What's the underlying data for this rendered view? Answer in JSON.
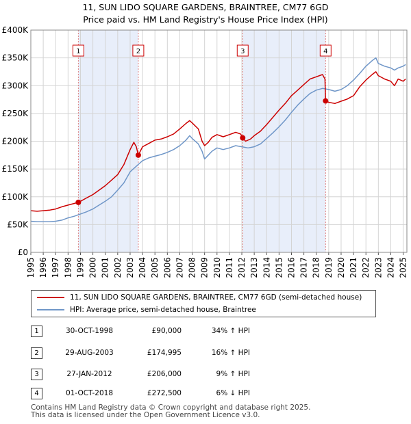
{
  "title": {
    "line1": "11, SUN LIDO SQUARE GARDENS, BRAINTREE, CM77 6GD",
    "line2": "Price paid vs. HM Land Registry's House Price Index (HPI)"
  },
  "colors": {
    "property": "#cc0000",
    "hpi": "#6f96c8",
    "band": "#e8eefa",
    "marker_line": "#e08080"
  },
  "chart_data": {
    "type": "line",
    "title": "Price paid vs. HM Land Registry's House Price Index (HPI)",
    "xlim": [
      1995,
      2025.3
    ],
    "ylim": [
      0,
      400000
    ],
    "x_ticks": [
      1995,
      1996,
      1997,
      1998,
      1999,
      2000,
      2001,
      2002,
      2003,
      2004,
      2005,
      2006,
      2007,
      2008,
      2009,
      2010,
      2011,
      2012,
      2013,
      2014,
      2015,
      2016,
      2017,
      2018,
      2019,
      2020,
      2021,
      2022,
      2023,
      2024,
      2025
    ],
    "y_ticks": [
      {
        "value": 0,
        "label": "£0"
      },
      {
        "value": 50000,
        "label": "£50K"
      },
      {
        "value": 100000,
        "label": "£100K"
      },
      {
        "value": 150000,
        "label": "£150K"
      },
      {
        "value": 200000,
        "label": "£200K"
      },
      {
        "value": 250000,
        "label": "£250K"
      },
      {
        "value": 300000,
        "label": "£300K"
      },
      {
        "value": 350000,
        "label": "£350K"
      },
      {
        "value": 400000,
        "label": "£400K"
      }
    ],
    "grid": true,
    "shaded_bands": [
      [
        1998.83,
        2003.66
      ],
      [
        2012.07,
        2018.75
      ]
    ],
    "series": [
      {
        "name": "11, SUN LIDO SQUARE GARDENS, BRAINTREE, CM77 6GD (semi-detached house)",
        "x": [
          1995,
          1995.5,
          1996,
          1996.5,
          1997,
          1997.5,
          1998,
          1998.5,
          1998.83,
          1999,
          1999.5,
          2000,
          2000.5,
          2001,
          2001.5,
          2002,
          2002.5,
          2003,
          2003.3,
          2003.5,
          2003.66,
          2004,
          2004.5,
          2005,
          2005.5,
          2006,
          2006.5,
          2007,
          2007.5,
          2007.8,
          2008,
          2008.5,
          2008.8,
          2009,
          2009.3,
          2009.6,
          2010,
          2010.5,
          2011,
          2011.5,
          2011.9,
          2012.07,
          2012.3,
          2012.7,
          2013,
          2013.5,
          2014,
          2014.5,
          2015,
          2015.5,
          2016,
          2016.5,
          2017,
          2017.5,
          2018,
          2018.5,
          2018.7,
          2018.75,
          2019,
          2019.5,
          2020,
          2020.5,
          2021,
          2021.5,
          2022,
          2022.5,
          2022.8,
          2023,
          2023.5,
          2024,
          2024.3,
          2024.6,
          2025,
          2025.2
        ],
        "values": [
          75000,
          74000,
          75000,
          76000,
          78000,
          82000,
          85000,
          88000,
          90000,
          92000,
          98000,
          104000,
          112000,
          120000,
          130000,
          140000,
          158000,
          185000,
          198000,
          190000,
          174995,
          190000,
          196000,
          202000,
          204000,
          208000,
          213000,
          222000,
          232000,
          237000,
          233000,
          222000,
          200000,
          192000,
          198000,
          207000,
          212000,
          208000,
          212000,
          216000,
          213000,
          206000,
          200000,
          204000,
          210000,
          218000,
          230000,
          243000,
          256000,
          268000,
          282000,
          292000,
          302000,
          312000,
          316000,
          320000,
          312000,
          272500,
          270000,
          268000,
          272000,
          276000,
          282000,
          298000,
          310000,
          320000,
          325000,
          318000,
          312000,
          308000,
          300000,
          312000,
          308000,
          312000
        ]
      },
      {
        "name": "HPI: Average price, semi-detached house, Braintree",
        "x": [
          1995,
          1995.5,
          1996,
          1996.5,
          1997,
          1997.5,
          1998,
          1998.5,
          1999,
          1999.5,
          2000,
          2000.5,
          2001,
          2001.5,
          2002,
          2002.5,
          2003,
          2003.5,
          2004,
          2004.5,
          2005,
          2005.5,
          2006,
          2006.5,
          2007,
          2007.5,
          2007.8,
          2008,
          2008.5,
          2008.8,
          2009,
          2009.3,
          2009.6,
          2010,
          2010.5,
          2011,
          2011.5,
          2012,
          2012.5,
          2013,
          2013.5,
          2014,
          2014.5,
          2015,
          2015.5,
          2016,
          2016.5,
          2017,
          2017.5,
          2018,
          2018.5,
          2019,
          2019.5,
          2020,
          2020.5,
          2021,
          2021.5,
          2022,
          2022.5,
          2022.8,
          2023,
          2023.5,
          2024,
          2024.3,
          2024.6,
          2025,
          2025.2
        ],
        "values": [
          56000,
          55000,
          55000,
          55000,
          56000,
          58000,
          62000,
          65000,
          69000,
          73000,
          78000,
          85000,
          92000,
          100000,
          112000,
          125000,
          145000,
          155000,
          165000,
          170000,
          173000,
          176000,
          180000,
          185000,
          192000,
          202000,
          210000,
          205000,
          195000,
          182000,
          168000,
          175000,
          182000,
          188000,
          185000,
          188000,
          192000,
          190000,
          188000,
          190000,
          195000,
          205000,
          215000,
          226000,
          238000,
          252000,
          265000,
          276000,
          286000,
          292000,
          295000,
          293000,
          290000,
          293000,
          300000,
          310000,
          322000,
          335000,
          345000,
          350000,
          340000,
          335000,
          332000,
          328000,
          332000,
          335000,
          338000
        ]
      }
    ],
    "markers": [
      {
        "label": "1",
        "x": 1998.83,
        "y": 90000
      },
      {
        "label": "2",
        "x": 2003.66,
        "y": 174995
      },
      {
        "label": "3",
        "x": 2012.07,
        "y": 206000
      },
      {
        "label": "4",
        "x": 2018.75,
        "y": 272500
      }
    ]
  },
  "legend": {
    "property_label": "11, SUN LIDO SQUARE GARDENS, BRAINTREE, CM77 6GD (semi-detached house)",
    "hpi_label": "HPI: Average price, semi-detached house, Braintree"
  },
  "transactions": [
    {
      "num": "1",
      "date": "30-OCT-1998",
      "price": "£90,000",
      "hpi": "34% ↑ HPI"
    },
    {
      "num": "2",
      "date": "29-AUG-2003",
      "price": "£174,995",
      "hpi": "16% ↑ HPI"
    },
    {
      "num": "3",
      "date": "27-JAN-2012",
      "price": "£206,000",
      "hpi": "9% ↑ HPI"
    },
    {
      "num": "4",
      "date": "01-OCT-2018",
      "price": "£272,500",
      "hpi": "6% ↓ HPI"
    }
  ],
  "footer": {
    "line1": "Contains HM Land Registry data © Crown copyright and database right 2025.",
    "line2": "This data is licensed under the Open Government Licence v3.0."
  }
}
